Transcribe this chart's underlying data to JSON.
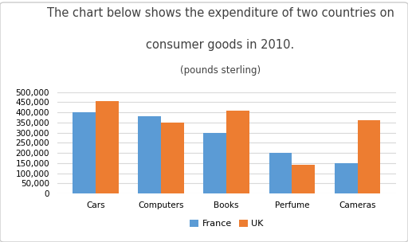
{
  "title_line1": "The chart below shows the expenditure of two countries on",
  "title_line2": "consumer goods in 2010.",
  "title_line3": "(pounds sterling)",
  "categories": [
    "Cars",
    "Computers",
    "Books",
    "Perfume",
    "Cameras"
  ],
  "france_values": [
    400000,
    380000,
    300000,
    200000,
    150000
  ],
  "uk_values": [
    455000,
    350000,
    408000,
    140000,
    360000
  ],
  "france_color": "#5B9BD5",
  "uk_color": "#ED7D31",
  "ylim": [
    0,
    500000
  ],
  "yticks": [
    0,
    50000,
    100000,
    150000,
    200000,
    250000,
    300000,
    350000,
    400000,
    450000,
    500000
  ],
  "background_color": "#FFFFFF",
  "plot_bg_color": "#FFFFFF",
  "grid_color": "#D9D9D9",
  "title_color": "#404040",
  "title_fontsize": 10.5,
  "subtitle_fontsize": 8.5,
  "tick_fontsize": 7.5,
  "legend_labels": [
    "France",
    "UK"
  ],
  "bar_width": 0.35
}
